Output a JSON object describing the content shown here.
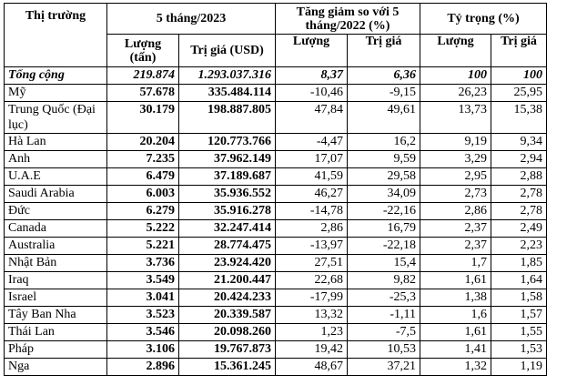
{
  "header": {
    "market": "Thị trường",
    "period": "5 tháng/2023",
    "change": "Tăng giảm so với 5 tháng/2022 (%)",
    "share": "Tỷ trọng (%)",
    "qty": "Lượng (tấn)",
    "value": "Trị giá (USD)",
    "change_qty": "Lượng",
    "change_value": "Trị giá",
    "share_qty": "Lượng",
    "share_value": "Trị giá"
  },
  "total": {
    "label": "Tổng cộng",
    "qty": "219.874",
    "value": "1.293.037.316",
    "chg_qty": "8,37",
    "chg_value": "6,36",
    "share_qty": "100",
    "share_value": "100"
  },
  "rows": [
    {
      "market": "Mỹ",
      "qty": "57.678",
      "value": "335.484.114",
      "chg_qty": "-10,46",
      "chg_value": "-9,15",
      "share_qty": "26,23",
      "share_value": "25,95"
    },
    {
      "market": "Trung Quốc (Đại lục)",
      "qty": "30.179",
      "value": "198.887.805",
      "chg_qty": "47,84",
      "chg_value": "49,61",
      "share_qty": "13,73",
      "share_value": "15,38"
    },
    {
      "market": "Hà Lan",
      "qty": "20.204",
      "value": "120.773.766",
      "chg_qty": "-4,47",
      "chg_value": "16,2",
      "share_qty": "9,19",
      "share_value": "9,34"
    },
    {
      "market": "Anh",
      "qty": "7.235",
      "value": "37.962.149",
      "chg_qty": "17,07",
      "chg_value": "9,59",
      "share_qty": "3,29",
      "share_value": "2,94"
    },
    {
      "market": "U.A.E",
      "qty": "6.479",
      "value": "37.189.687",
      "chg_qty": "41,59",
      "chg_value": "29,58",
      "share_qty": "2,95",
      "share_value": "2,88"
    },
    {
      "market": "Saudi Arabia",
      "qty": "6.003",
      "value": "35.936.552",
      "chg_qty": "46,27",
      "chg_value": "34,09",
      "share_qty": "2,73",
      "share_value": "2,78"
    },
    {
      "market": "Đức",
      "qty": "6.279",
      "value": "35.916.278",
      "chg_qty": "-14,78",
      "chg_value": "-22,16",
      "share_qty": "2,86",
      "share_value": "2,78"
    },
    {
      "market": "Canada",
      "qty": "5.222",
      "value": "32.247.414",
      "chg_qty": "2,86",
      "chg_value": "16,79",
      "share_qty": "2,37",
      "share_value": "2,49"
    },
    {
      "market": "Australia",
      "qty": "5.221",
      "value": "28.774.475",
      "chg_qty": "-13,97",
      "chg_value": "-22,18",
      "share_qty": "2,37",
      "share_value": "2,23"
    },
    {
      "market": "Nhật Bản",
      "qty": "3.736",
      "value": "23.924.420",
      "chg_qty": "27,51",
      "chg_value": "15,4",
      "share_qty": "1,7",
      "share_value": "1,85"
    },
    {
      "market": "Iraq",
      "qty": "3.549",
      "value": "21.200.447",
      "chg_qty": "22,68",
      "chg_value": "9,82",
      "share_qty": "1,61",
      "share_value": "1,64"
    },
    {
      "market": "Israel",
      "qty": "3.041",
      "value": "20.424.233",
      "chg_qty": "-17,99",
      "chg_value": "-25,3",
      "share_qty": "1,38",
      "share_value": "1,58"
    },
    {
      "market": "Tây Ban Nha",
      "qty": "3.523",
      "value": "20.339.587",
      "chg_qty": "13,32",
      "chg_value": "-1,11",
      "share_qty": "1,6",
      "share_value": "1,57"
    },
    {
      "market": "Thái Lan",
      "qty": "3.546",
      "value": "20.098.260",
      "chg_qty": "1,23",
      "chg_value": "-7,5",
      "share_qty": "1,61",
      "share_value": "1,55"
    },
    {
      "market": "Pháp",
      "qty": "3.106",
      "value": "19.767.873",
      "chg_qty": "19,42",
      "chg_value": "10,53",
      "share_qty": "1,41",
      "share_value": "1,53"
    },
    {
      "market": "Nga",
      "qty": "2.896",
      "value": "15.361.245",
      "chg_qty": "48,67",
      "chg_value": "37,21",
      "share_qty": "1,32",
      "share_value": "1,19"
    }
  ]
}
